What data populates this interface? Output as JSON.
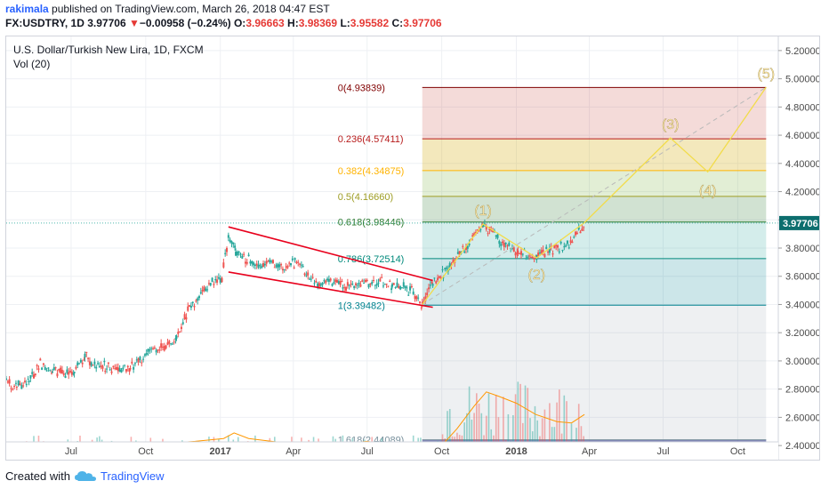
{
  "header": {
    "author": "rakimala",
    "published_text": "published on TradingView.com, March 26, 2018 04:47 EST",
    "symbol": "FX:USDTRY, 1D",
    "last": "3.97706",
    "change_arrow": "▼",
    "change": "−0.00958 (−0.24%)",
    "o_label": "O:",
    "o": "3.96663",
    "h_label": "H:",
    "h": "3.98369",
    "l_label": "L:",
    "l": "3.95582",
    "c_label": "C:",
    "c": "3.97706"
  },
  "chart_overlay": {
    "title": "U.S. Dollar/Turkish New Lira, 1D, FXCM",
    "volume_label": "Vol (20)"
  },
  "footer": {
    "created_with": "Created with",
    "brand": "TradingView",
    "logo_icon": "tradingview-cloud-icon"
  },
  "colors": {
    "up": "#26a69a",
    "down": "#ef5350",
    "wedge": "#e8001c",
    "wave": "#f2dc4a",
    "wave_label": "#ffe9a8",
    "ma": "#ff9800",
    "axis_text": "#4a4a4a",
    "current_price_bg": "#0d6e6e",
    "fib_levels": [
      "#800000",
      "#b71c1c",
      "#ffb300",
      "#9e9d24",
      "#2e7d32",
      "#00897b",
      "#00838f",
      "#78909c",
      "#0d47a1"
    ]
  },
  "chart_data": {
    "type": "candlestick",
    "x_range": [
      "2016-04-12",
      "2018-11-20"
    ],
    "y_range": [
      2.3,
      5.3
    ],
    "y_ticks": [
      "5.20000",
      "5.00000",
      "4.80000",
      "4.60000",
      "4.40000",
      "4.20000",
      "4.00000",
      "3.80000",
      "3.60000",
      "3.40000",
      "3.20000",
      "3.00000",
      "2.80000",
      "2.60000",
      "2.40000"
    ],
    "x_ticks": [
      {
        "label": "Jul",
        "date": "2016-07-01"
      },
      {
        "label": "Oct",
        "date": "2016-10-01"
      },
      {
        "label": "2017",
        "date": "2017-01-01",
        "bold": true
      },
      {
        "label": "Apr",
        "date": "2017-04-01"
      },
      {
        "label": "Jul",
        "date": "2017-07-01"
      },
      {
        "label": "Oct",
        "date": "2017-10-01"
      },
      {
        "label": "2018",
        "date": "2018-01-01",
        "bold": true
      },
      {
        "label": "Apr",
        "date": "2018-04-01"
      },
      {
        "label": "Jul",
        "date": "2018-07-01"
      },
      {
        "label": "Oct",
        "date": "2018-10-01"
      }
    ],
    "current_price": {
      "value": 3.97706,
      "label": "3.97706"
    },
    "price_series": [
      [
        "2016-04-12",
        2.85
      ],
      [
        "2016-04-25",
        2.82
      ],
      [
        "2016-05-10",
        2.85
      ],
      [
        "2016-05-24",
        2.98
      ],
      [
        "2016-06-08",
        2.93
      ],
      [
        "2016-06-22",
        2.91
      ],
      [
        "2016-07-05",
        2.92
      ],
      [
        "2016-07-18",
        3.04
      ],
      [
        "2016-07-28",
        2.98
      ],
      [
        "2016-08-12",
        2.96
      ],
      [
        "2016-08-26",
        2.95
      ],
      [
        "2016-09-12",
        2.95
      ],
      [
        "2016-09-26",
        3.01
      ],
      [
        "2016-10-10",
        3.07
      ],
      [
        "2016-10-24",
        3.1
      ],
      [
        "2016-11-08",
        3.15
      ],
      [
        "2016-11-22",
        3.36
      ],
      [
        "2016-12-06",
        3.45
      ],
      [
        "2016-12-20",
        3.55
      ],
      [
        "2017-01-03",
        3.59
      ],
      [
        "2017-01-11",
        3.88
      ],
      [
        "2017-01-20",
        3.78
      ],
      [
        "2017-02-03",
        3.72
      ],
      [
        "2017-02-17",
        3.66
      ],
      [
        "2017-03-03",
        3.7
      ],
      [
        "2017-03-17",
        3.65
      ],
      [
        "2017-04-03",
        3.7
      ],
      [
        "2017-04-17",
        3.61
      ],
      [
        "2017-05-01",
        3.56
      ],
      [
        "2017-05-15",
        3.56
      ],
      [
        "2017-06-01",
        3.53
      ],
      [
        "2017-06-15",
        3.52
      ],
      [
        "2017-07-03",
        3.55
      ],
      [
        "2017-07-17",
        3.56
      ],
      [
        "2017-08-01",
        3.53
      ],
      [
        "2017-08-15",
        3.52
      ],
      [
        "2017-08-25",
        3.49
      ],
      [
        "2017-09-07",
        3.41
      ],
      [
        "2017-09-20",
        3.56
      ],
      [
        "2017-10-03",
        3.62
      ],
      [
        "2017-10-17",
        3.72
      ],
      [
        "2017-10-31",
        3.82
      ],
      [
        "2017-11-10",
        3.89
      ],
      [
        "2017-11-21",
        3.97
      ],
      [
        "2017-12-05",
        3.89
      ],
      [
        "2017-12-19",
        3.82
      ],
      [
        "2018-01-03",
        3.76
      ],
      [
        "2018-01-17",
        3.75
      ],
      [
        "2018-01-26",
        3.73
      ],
      [
        "2018-02-09",
        3.79
      ],
      [
        "2018-02-23",
        3.8
      ],
      [
        "2018-03-09",
        3.83
      ],
      [
        "2018-03-19",
        3.92
      ],
      [
        "2018-03-26",
        3.97706
      ]
    ],
    "ma_series": [
      [
        "2016-04-12",
        2.4
      ],
      [
        "2016-06-01",
        2.41
      ],
      [
        "2016-07-15",
        2.4
      ],
      [
        "2016-09-01",
        2.41
      ],
      [
        "2016-10-15",
        2.41
      ],
      [
        "2016-12-01",
        2.43
      ],
      [
        "2017-01-05",
        2.45
      ],
      [
        "2017-01-18",
        2.49
      ],
      [
        "2017-02-05",
        2.45
      ],
      [
        "2017-03-20",
        2.42
      ],
      [
        "2017-05-10",
        2.4
      ],
      [
        "2017-07-01",
        2.43
      ],
      [
        "2017-08-15",
        2.39
      ],
      [
        "2017-09-15",
        2.36
      ],
      [
        "2017-10-01",
        2.4
      ],
      [
        "2017-10-20",
        2.52
      ],
      [
        "2017-11-10",
        2.68
      ],
      [
        "2017-11-25",
        2.78
      ],
      [
        "2017-12-10",
        2.75
      ],
      [
        "2018-01-01",
        2.7
      ],
      [
        "2018-01-25",
        2.62
      ],
      [
        "2018-02-20",
        2.57
      ],
      [
        "2018-03-10",
        2.56
      ],
      [
        "2018-03-26",
        2.62
      ]
    ],
    "volume_range": [
      0,
      1
    ],
    "wedge_lines": [
      {
        "from": [
          "2017-01-11",
          3.95
        ],
        "to": [
          "2017-09-20",
          3.57
        ]
      },
      {
        "from": [
          "2017-01-11",
          3.63
        ],
        "to": [
          "2017-09-20",
          3.38
        ]
      }
    ],
    "fibonacci": {
      "start_date": "2017-09-07",
      "end_date": "2018-11-05",
      "levels": [
        {
          "ratio": "0",
          "value": 4.93839,
          "label": "0(4.93839)"
        },
        {
          "ratio": "0.236",
          "value": 4.57411,
          "label": "0.236(4.57411)"
        },
        {
          "ratio": "0.382",
          "value": 4.34875,
          "label": "0.382(4.34875)"
        },
        {
          "ratio": "0.5",
          "value": 4.1666,
          "label": "0.5(4.16660)"
        },
        {
          "ratio": "0.618",
          "value": 3.98446,
          "label": "0.618(3.98446)"
        },
        {
          "ratio": "0.786",
          "value": 3.72514,
          "label": "0.786(3.72514)"
        },
        {
          "ratio": "1",
          "value": 3.39482,
          "label": "1(3.39482)"
        },
        {
          "ratio": "1.618",
          "value": 2.44089,
          "label": "1.618(2.44089)"
        }
      ]
    },
    "projection_line": {
      "from": [
        "2017-09-07",
        3.4
      ],
      "to": [
        "2018-11-05",
        4.94
      ]
    },
    "elliott_waves": [
      {
        "label": "(1)",
        "date": "2017-11-21",
        "value": 3.97
      },
      {
        "label": "(2)",
        "date": "2018-01-26",
        "value": 3.73
      },
      {
        "label": "(3)",
        "date": "2018-07-10",
        "value": 4.58
      },
      {
        "label": "(4)",
        "date": "2018-08-25",
        "value": 4.34
      },
      {
        "label": "(5)",
        "date": "2018-11-05",
        "value": 4.94
      }
    ],
    "wave_path": [
      [
        "2017-09-07",
        3.4
      ],
      [
        "2017-11-21",
        3.97
      ],
      [
        "2018-01-26",
        3.73
      ],
      [
        "2018-03-26",
        3.98
      ],
      [
        "2018-07-10",
        4.58
      ],
      [
        "2018-08-25",
        4.34
      ],
      [
        "2018-11-05",
        4.94
      ]
    ]
  }
}
